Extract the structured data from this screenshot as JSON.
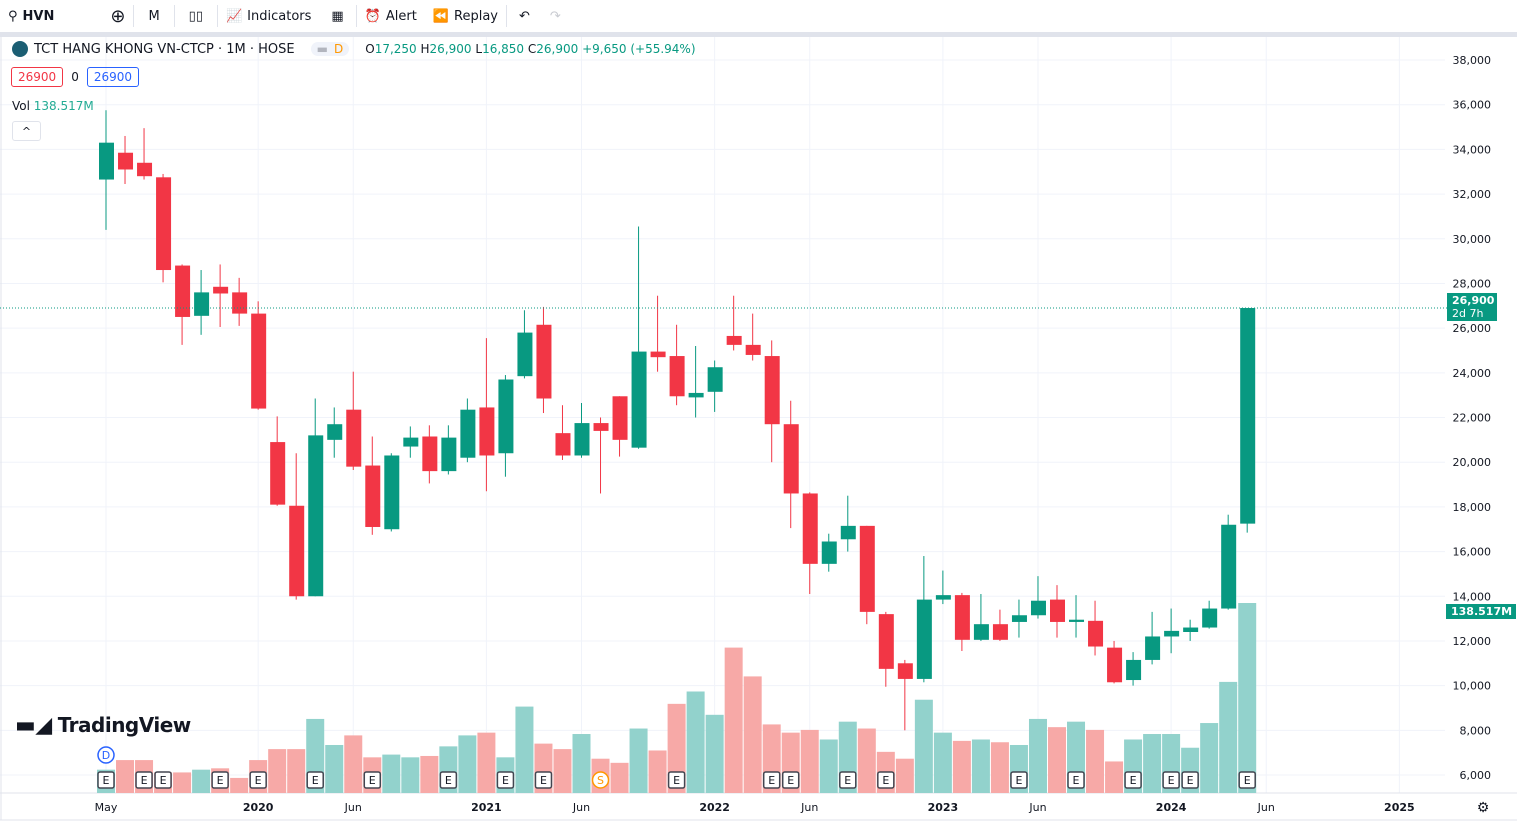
{
  "toolbar": {
    "symbol": "HVN",
    "interval": "M",
    "indicators": "Indicators",
    "alert": "Alert",
    "replay": "Replay"
  },
  "legend": {
    "title": "TCT HANG KHONG VN-CTCP · 1M · HOSE",
    "flag": "D",
    "o_label": "O",
    "o": "17,250",
    "h_label": "H",
    "h": "26,900",
    "l_label": "L",
    "l": "16,850",
    "c_label": "C",
    "c": "26,900",
    "change": "+9,650 (+55.94%)",
    "sell": "26900",
    "spread": "0",
    "buy": "26900",
    "vol_label": "Vol",
    "vol_value": "138.517M"
  },
  "price_badge": {
    "price": "26,900",
    "countdown": "2d 7h"
  },
  "vol_badge": "138.517M",
  "brand": "TradingView",
  "colors": {
    "up": "#089981",
    "down": "#f23645",
    "vol_up": "#92d2cc",
    "vol_down": "#f7a9a7"
  },
  "chart_data": {
    "type": "candlestick",
    "price_ticks": [
      "6,000",
      "8,000",
      "10,000",
      "12,000",
      "14,000",
      "16,000",
      "18,000",
      "20,000",
      "22,000",
      "24,000",
      "26,000",
      "28,000",
      "30,000",
      "32,000",
      "34,000",
      "36,000",
      "38,000"
    ],
    "price_range": [
      6000,
      38000
    ],
    "x_labels": [
      {
        "i": 0,
        "t": "May"
      },
      {
        "i": 8,
        "t": "2020"
      },
      {
        "i": 13,
        "t": "Jun"
      },
      {
        "i": 20,
        "t": "2021"
      },
      {
        "i": 25,
        "t": "Jun"
      },
      {
        "i": 32,
        "t": "2022"
      },
      {
        "i": 37,
        "t": "Jun"
      },
      {
        "i": 44,
        "t": "2023"
      },
      {
        "i": 49,
        "t": "Jun"
      },
      {
        "i": 56,
        "t": "2024"
      },
      {
        "i": 61,
        "t": "Jun"
      },
      {
        "i": 68,
        "t": "2025"
      }
    ],
    "candles_ohlcv_millions": [
      [
        32650,
        35750,
        30400,
        34300,
        17
      ],
      [
        33850,
        34600,
        32450,
        33100,
        24
      ],
      [
        33400,
        34950,
        32650,
        32800,
        24
      ],
      [
        32750,
        32900,
        28050,
        28600,
        15
      ],
      [
        28800,
        28850,
        25250,
        26500,
        15
      ],
      [
        26550,
        28600,
        25700,
        27600,
        17
      ],
      [
        27850,
        28850,
        26050,
        27550,
        18
      ],
      [
        27600,
        28250,
        26100,
        26650,
        11
      ],
      [
        26650,
        27200,
        22350,
        22400,
        24
      ],
      [
        20900,
        22050,
        18050,
        18100,
        32
      ],
      [
        18050,
        20400,
        13850,
        14000,
        32
      ],
      [
        14000,
        22850,
        14000,
        21200,
        54
      ],
      [
        21000,
        22450,
        20200,
        21700,
        35
      ],
      [
        22350,
        24050,
        19650,
        19800,
        42
      ],
      [
        19850,
        21150,
        16750,
        17100,
        26
      ],
      [
        17000,
        20400,
        16900,
        20300,
        28
      ],
      [
        20700,
        21600,
        20200,
        21100,
        26
      ],
      [
        21150,
        21650,
        19050,
        19600,
        27
      ],
      [
        19600,
        21650,
        19450,
        21100,
        34
      ],
      [
        20200,
        22850,
        20000,
        22350,
        42
      ],
      [
        22450,
        25550,
        18700,
        20300,
        44
      ],
      [
        20400,
        23900,
        19350,
        23700,
        26
      ],
      [
        23850,
        26800,
        23750,
        25800,
        63
      ],
      [
        26150,
        26950,
        22200,
        22850,
        36
      ],
      [
        21300,
        22550,
        20100,
        20300,
        32
      ],
      [
        20300,
        22650,
        20200,
        21750,
        43
      ],
      [
        21750,
        22000,
        18600,
        21400,
        25
      ],
      [
        22950,
        22950,
        20250,
        21000,
        22
      ],
      [
        20650,
        30550,
        20600,
        24950,
        47
      ],
      [
        24950,
        27450,
        24050,
        24700,
        31
      ],
      [
        24750,
        26150,
        22550,
        22950,
        65
      ],
      [
        22900,
        25200,
        22000,
        23100,
        74
      ],
      [
        23150,
        24550,
        22250,
        24250,
        57
      ],
      [
        25650,
        27450,
        25000,
        25250,
        106
      ],
      [
        25250,
        26650,
        24550,
        24800,
        85
      ],
      [
        24750,
        25450,
        20000,
        21700,
        50
      ],
      [
        21700,
        22750,
        17050,
        18600,
        44
      ],
      [
        18600,
        18650,
        14100,
        15450,
        46
      ],
      [
        15450,
        16800,
        15100,
        16450,
        39
      ],
      [
        16550,
        18500,
        16000,
        17150,
        52
      ],
      [
        17150,
        17150,
        12750,
        13300,
        47
      ],
      [
        13200,
        13300,
        9950,
        10750,
        30
      ],
      [
        11000,
        11150,
        8000,
        10300,
        25
      ],
      [
        10300,
        15800,
        10150,
        13850,
        68
      ],
      [
        13850,
        15150,
        13650,
        14050,
        44
      ],
      [
        14050,
        14150,
        11550,
        12050,
        38
      ],
      [
        12050,
        14100,
        12000,
        12750,
        39
      ],
      [
        12750,
        13400,
        12000,
        12050,
        37
      ],
      [
        12850,
        13850,
        12150,
        13150,
        35
      ],
      [
        13150,
        14900,
        13000,
        13800,
        54
      ],
      [
        13850,
        14500,
        12150,
        12850,
        48
      ],
      [
        12850,
        14050,
        12150,
        12950,
        52
      ],
      [
        12900,
        13800,
        11350,
        11750,
        46
      ],
      [
        11700,
        12000,
        10100,
        10150,
        23
      ],
      [
        10250,
        11500,
        10000,
        11150,
        39
      ],
      [
        11150,
        13300,
        10950,
        12200,
        43
      ],
      [
        12200,
        13450,
        11450,
        12450,
        43
      ],
      [
        12400,
        12950,
        12000,
        12600,
        33
      ],
      [
        12600,
        13800,
        12550,
        13450,
        51
      ],
      [
        13450,
        17650,
        13400,
        17200,
        81
      ],
      [
        17250,
        26900,
        16850,
        26900,
        138.517
      ]
    ],
    "events": [
      {
        "i": 0,
        "t": "E"
      },
      {
        "i": 2,
        "t": "E"
      },
      {
        "i": 3,
        "t": "E"
      },
      {
        "i": 6,
        "t": "E"
      },
      {
        "i": 8,
        "t": "E"
      },
      {
        "i": 11,
        "t": "E"
      },
      {
        "i": 14,
        "t": "E"
      },
      {
        "i": 18,
        "t": "E"
      },
      {
        "i": 21,
        "t": "E"
      },
      {
        "i": 23,
        "t": "E"
      },
      {
        "i": 26,
        "t": "S"
      },
      {
        "i": 30,
        "t": "E"
      },
      {
        "i": 35,
        "t": "E"
      },
      {
        "i": 36,
        "t": "E"
      },
      {
        "i": 39,
        "t": "E"
      },
      {
        "i": 41,
        "t": "E"
      },
      {
        "i": 48,
        "t": "E"
      },
      {
        "i": 51,
        "t": "E"
      },
      {
        "i": 54,
        "t": "E"
      },
      {
        "i": 56,
        "t": "E"
      },
      {
        "i": 57,
        "t": "E"
      },
      {
        "i": 60,
        "t": "E"
      }
    ],
    "dividend": {
      "i": 0,
      "t": "D"
    }
  }
}
